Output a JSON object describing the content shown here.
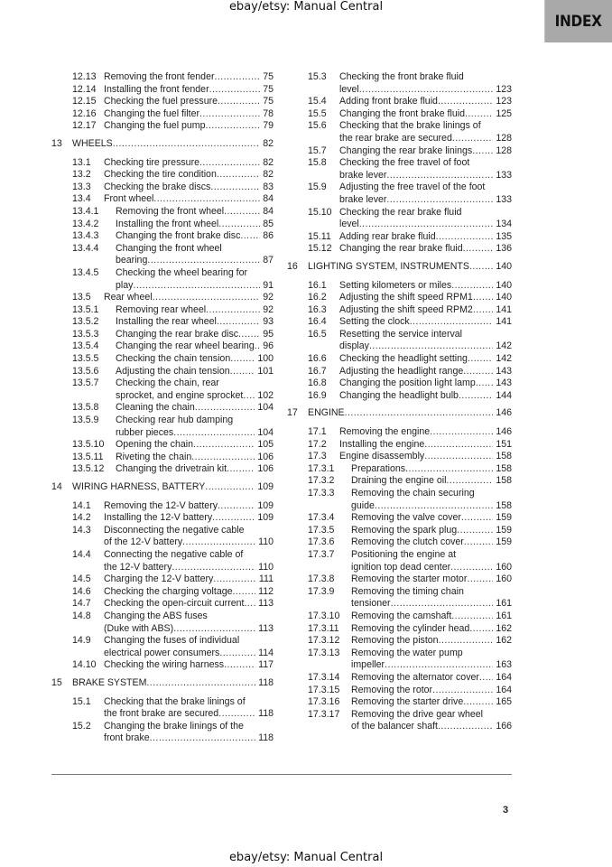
{
  "watermark_top": "ebay/etsy: Manual Central",
  "watermark_bottom": "ebay/etsy: Manual Central",
  "section_tab": "INDEX",
  "page_number": "3",
  "left_column": [
    {
      "n": "12.13",
      "t": [
        "Removing the front fender"
      ],
      "p": "75",
      "l": 2
    },
    {
      "n": "12.14",
      "t": [
        "Installing the front fender"
      ],
      "p": "75",
      "l": 2
    },
    {
      "n": "12.15",
      "t": [
        "Checking the fuel pressure"
      ],
      "p": "75",
      "l": 2
    },
    {
      "n": "12.16",
      "t": [
        "Changing the fuel filter"
      ],
      "p": "78",
      "l": 2
    },
    {
      "n": "12.17",
      "t": [
        "Changing the fuel pump"
      ],
      "p": "79",
      "l": 2
    },
    {
      "n": "13",
      "t": [
        "WHEELS"
      ],
      "p": "82",
      "l": 1
    },
    {
      "n": "13.1",
      "t": [
        "Checking tire pressure"
      ],
      "p": "82",
      "l": 2
    },
    {
      "n": "13.2",
      "t": [
        "Checking the tire condition"
      ],
      "p": "82",
      "l": 2
    },
    {
      "n": "13.3",
      "t": [
        "Checking the brake discs"
      ],
      "p": "83",
      "l": 2
    },
    {
      "n": "13.4",
      "t": [
        "Front wheel"
      ],
      "p": "84",
      "l": 2
    },
    {
      "n": "13.4.1",
      "t": [
        "Removing the front wheel"
      ],
      "p": "84",
      "l": 3
    },
    {
      "n": "13.4.2",
      "t": [
        "Installing the front wheel"
      ],
      "p": "85",
      "l": 3
    },
    {
      "n": "13.4.3",
      "t": [
        "Changing the front brake disc"
      ],
      "p": "86",
      "l": 3
    },
    {
      "n": "13.4.4",
      "t": [
        "Changing the front wheel",
        "bearing"
      ],
      "p": "87",
      "l": 3
    },
    {
      "n": "13.4.5",
      "t": [
        "Checking the wheel bearing for",
        "play"
      ],
      "p": "91",
      "l": 3
    },
    {
      "n": "13.5",
      "t": [
        "Rear wheel"
      ],
      "p": "92",
      "l": 2
    },
    {
      "n": "13.5.1",
      "t": [
        "Removing rear wheel"
      ],
      "p": "92",
      "l": 3
    },
    {
      "n": "13.5.2",
      "t": [
        "Installing the rear wheel"
      ],
      "p": "93",
      "l": 3
    },
    {
      "n": "13.5.3",
      "t": [
        "Changing the rear brake disc"
      ],
      "p": "95",
      "l": 3
    },
    {
      "n": "13.5.4",
      "t": [
        "Changing the rear wheel bearing"
      ],
      "p": "96",
      "l": 3
    },
    {
      "n": "13.5.5",
      "t": [
        "Checking the chain tension"
      ],
      "p": "100",
      "l": 3
    },
    {
      "n": "13.5.6",
      "t": [
        "Adjusting the chain tension"
      ],
      "p": "101",
      "l": 3
    },
    {
      "n": "13.5.7",
      "t": [
        "Checking the chain, rear",
        "sprocket, and engine sprocket"
      ],
      "p": "102",
      "l": 3
    },
    {
      "n": "13.5.8",
      "t": [
        "Cleaning the chain"
      ],
      "p": "104",
      "l": 3
    },
    {
      "n": "13.5.9",
      "t": [
        "Checking rear hub damping",
        "rubber pieces"
      ],
      "p": "104",
      "l": 3
    },
    {
      "n": "13.5.10",
      "t": [
        "Opening the chain"
      ],
      "p": "105",
      "l": 3
    },
    {
      "n": "13.5.11",
      "t": [
        "Riveting the chain"
      ],
      "p": "106",
      "l": 3
    },
    {
      "n": "13.5.12",
      "t": [
        "Changing the drivetrain kit"
      ],
      "p": "106",
      "l": 3
    },
    {
      "n": "14",
      "t": [
        "WIRING HARNESS, BATTERY"
      ],
      "p": "109",
      "l": 1
    },
    {
      "n": "14.1",
      "t": [
        "Removing the 12-V battery"
      ],
      "p": "109",
      "l": 2
    },
    {
      "n": "14.2",
      "t": [
        "Installing the 12-V battery"
      ],
      "p": "109",
      "l": 2
    },
    {
      "n": "14.3",
      "t": [
        "Disconnecting the negative cable",
        "of the 12-V battery"
      ],
      "p": "110",
      "l": 2
    },
    {
      "n": "14.4",
      "t": [
        "Connecting the negative cable of",
        "the 12-V battery"
      ],
      "p": "110",
      "l": 2
    },
    {
      "n": "14.5",
      "t": [
        "Charging the 12-V battery"
      ],
      "p": "111",
      "l": 2
    },
    {
      "n": "14.6",
      "t": [
        "Checking the charging voltage"
      ],
      "p": "112",
      "l": 2
    },
    {
      "n": "14.7",
      "t": [
        "Checking the open-circuit current"
      ],
      "p": "113",
      "l": 2
    },
    {
      "n": "14.8",
      "t": [
        "Changing the ABS fuses",
        "(Duke with ABS)"
      ],
      "p": "113",
      "l": 2
    },
    {
      "n": "14.9",
      "t": [
        "Changing the fuses of individual",
        "electrical power consumers"
      ],
      "p": "114",
      "l": 2
    },
    {
      "n": "14.10",
      "t": [
        "Checking the wiring harness"
      ],
      "p": "117",
      "l": 2
    },
    {
      "n": "15",
      "t": [
        "BRAKE SYSTEM"
      ],
      "p": "118",
      "l": 1
    },
    {
      "n": "15.1",
      "t": [
        "Checking that the brake linings of",
        "the front brake are secured"
      ],
      "p": "118",
      "l": 2
    },
    {
      "n": "15.2",
      "t": [
        "Changing the brake linings of the",
        "front brake"
      ],
      "p": "118",
      "l": 2
    }
  ],
  "right_column": [
    {
      "n": "15.3",
      "t": [
        "Checking the front brake fluid",
        "level"
      ],
      "p": "123",
      "l": 2
    },
    {
      "n": "15.4",
      "t": [
        "Adding front brake fluid"
      ],
      "p": "123",
      "l": 2
    },
    {
      "n": "15.5",
      "t": [
        "Changing the front brake fluid"
      ],
      "p": "125",
      "l": 2
    },
    {
      "n": "15.6",
      "t": [
        "Checking that the brake linings of",
        "the rear brake are secured"
      ],
      "p": "128",
      "l": 2
    },
    {
      "n": "15.7",
      "t": [
        "Changing the rear brake linings"
      ],
      "p": "128",
      "l": 2
    },
    {
      "n": "15.8",
      "t": [
        "Checking the free travel of foot",
        "brake lever"
      ],
      "p": "133",
      "l": 2
    },
    {
      "n": "15.9",
      "t": [
        "Adjusting the free travel of the foot",
        "brake lever"
      ],
      "p": "133",
      "l": 2
    },
    {
      "n": "15.10",
      "t": [
        "Checking the rear brake fluid",
        "level"
      ],
      "p": "134",
      "l": 2
    },
    {
      "n": "15.11",
      "t": [
        "Adding rear brake fluid"
      ],
      "p": "135",
      "l": 2
    },
    {
      "n": "15.12",
      "t": [
        "Changing the rear brake fluid"
      ],
      "p": "136",
      "l": 2
    },
    {
      "n": "16",
      "t": [
        "LIGHTING SYSTEM, INSTRUMENTS"
      ],
      "p": "140",
      "l": 1
    },
    {
      "n": "16.1",
      "t": [
        "Setting kilometers or miles"
      ],
      "p": "140",
      "l": 2
    },
    {
      "n": "16.2",
      "t": [
        "Adjusting the shift speed RPM1"
      ],
      "p": "140",
      "l": 2
    },
    {
      "n": "16.3",
      "t": [
        "Adjusting the shift speed RPM2"
      ],
      "p": "141",
      "l": 2
    },
    {
      "n": "16.4",
      "t": [
        "Setting the clock"
      ],
      "p": "141",
      "l": 2
    },
    {
      "n": "16.5",
      "t": [
        "Resetting the service interval",
        "display"
      ],
      "p": "142",
      "l": 2
    },
    {
      "n": "16.6",
      "t": [
        "Checking the headlight setting"
      ],
      "p": "142",
      "l": 2
    },
    {
      "n": "16.7",
      "t": [
        "Adjusting the headlight range"
      ],
      "p": "143",
      "l": 2
    },
    {
      "n": "16.8",
      "t": [
        "Changing the position light lamp"
      ],
      "p": "143",
      "l": 2
    },
    {
      "n": "16.9",
      "t": [
        "Changing the headlight bulb"
      ],
      "p": "144",
      "l": 2
    },
    {
      "n": "17",
      "t": [
        "ENGINE"
      ],
      "p": "146",
      "l": 1
    },
    {
      "n": "17.1",
      "t": [
        "Removing the engine"
      ],
      "p": "146",
      "l": 2
    },
    {
      "n": "17.2",
      "t": [
        "Installing the engine"
      ],
      "p": "151",
      "l": 2
    },
    {
      "n": "17.3",
      "t": [
        "Engine disassembly"
      ],
      "p": "158",
      "l": 2
    },
    {
      "n": "17.3.1",
      "t": [
        "Preparations"
      ],
      "p": "158",
      "l": 3
    },
    {
      "n": "17.3.2",
      "t": [
        "Draining the engine oil"
      ],
      "p": "158",
      "l": 3
    },
    {
      "n": "17.3.3",
      "t": [
        "Removing the chain securing",
        "guide"
      ],
      "p": "158",
      "l": 3
    },
    {
      "n": "17.3.4",
      "t": [
        "Removing the valve cover"
      ],
      "p": "159",
      "l": 3
    },
    {
      "n": "17.3.5",
      "t": [
        "Removing the spark plug"
      ],
      "p": "159",
      "l": 3
    },
    {
      "n": "17.3.6",
      "t": [
        "Removing the clutch cover"
      ],
      "p": "159",
      "l": 3
    },
    {
      "n": "17.3.7",
      "t": [
        "Positioning the engine at",
        "ignition top dead center"
      ],
      "p": "160",
      "l": 3
    },
    {
      "n": "17.3.8",
      "t": [
        "Removing the starter motor"
      ],
      "p": "160",
      "l": 3
    },
    {
      "n": "17.3.9",
      "t": [
        "Removing the timing chain",
        "tensioner"
      ],
      "p": "161",
      "l": 3
    },
    {
      "n": "17.3.10",
      "t": [
        "Removing the camshaft"
      ],
      "p": "161",
      "l": 3
    },
    {
      "n": "17.3.11",
      "t": [
        "Removing the cylinder head"
      ],
      "p": "162",
      "l": 3
    },
    {
      "n": "17.3.12",
      "t": [
        "Removing the piston"
      ],
      "p": "162",
      "l": 3
    },
    {
      "n": "17.3.13",
      "t": [
        "Removing the water pump",
        "impeller"
      ],
      "p": "163",
      "l": 3
    },
    {
      "n": "17.3.14",
      "t": [
        "Removing the alternator cover"
      ],
      "p": "164",
      "l": 3
    },
    {
      "n": "17.3.15",
      "t": [
        "Removing the rotor"
      ],
      "p": "164",
      "l": 3
    },
    {
      "n": "17.3.16",
      "t": [
        "Removing the starter drive"
      ],
      "p": "165",
      "l": 3
    },
    {
      "n": "17.3.17",
      "t": [
        "Removing the drive gear wheel",
        "of the balancer shaft"
      ],
      "p": "166",
      "l": 3
    }
  ]
}
